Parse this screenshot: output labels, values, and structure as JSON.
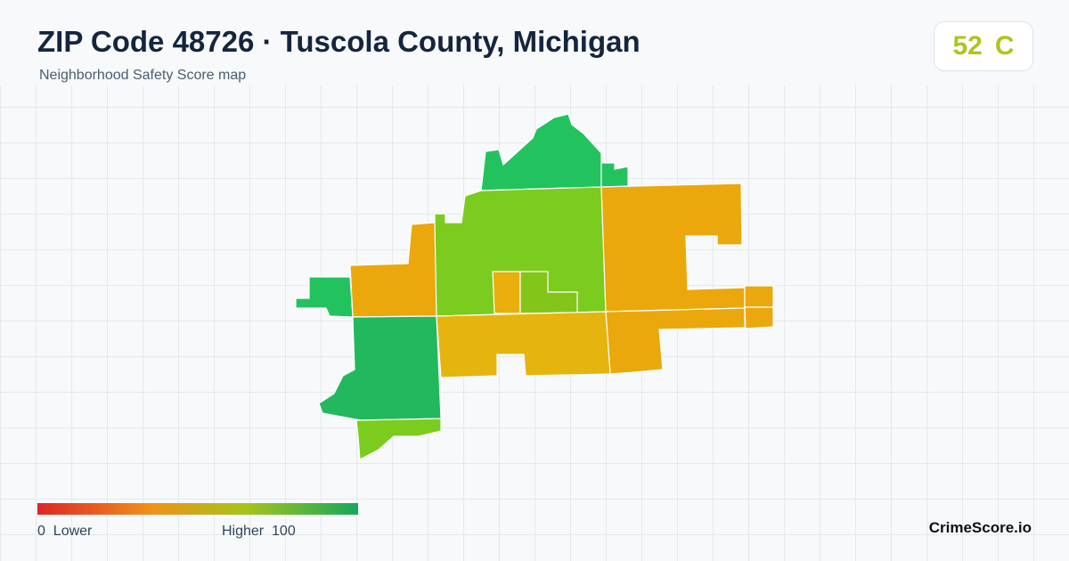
{
  "header": {
    "title": "ZIP Code 48726 · Tuscola County, Michigan",
    "subtitle": "Neighborhood Safety Score map"
  },
  "score": {
    "value": 52,
    "grade": "C"
  },
  "legend": {
    "min": 0,
    "min_label": "Lower",
    "max_label": "Higher",
    "max": 100
  },
  "brand": "CrimeScore.io"
}
